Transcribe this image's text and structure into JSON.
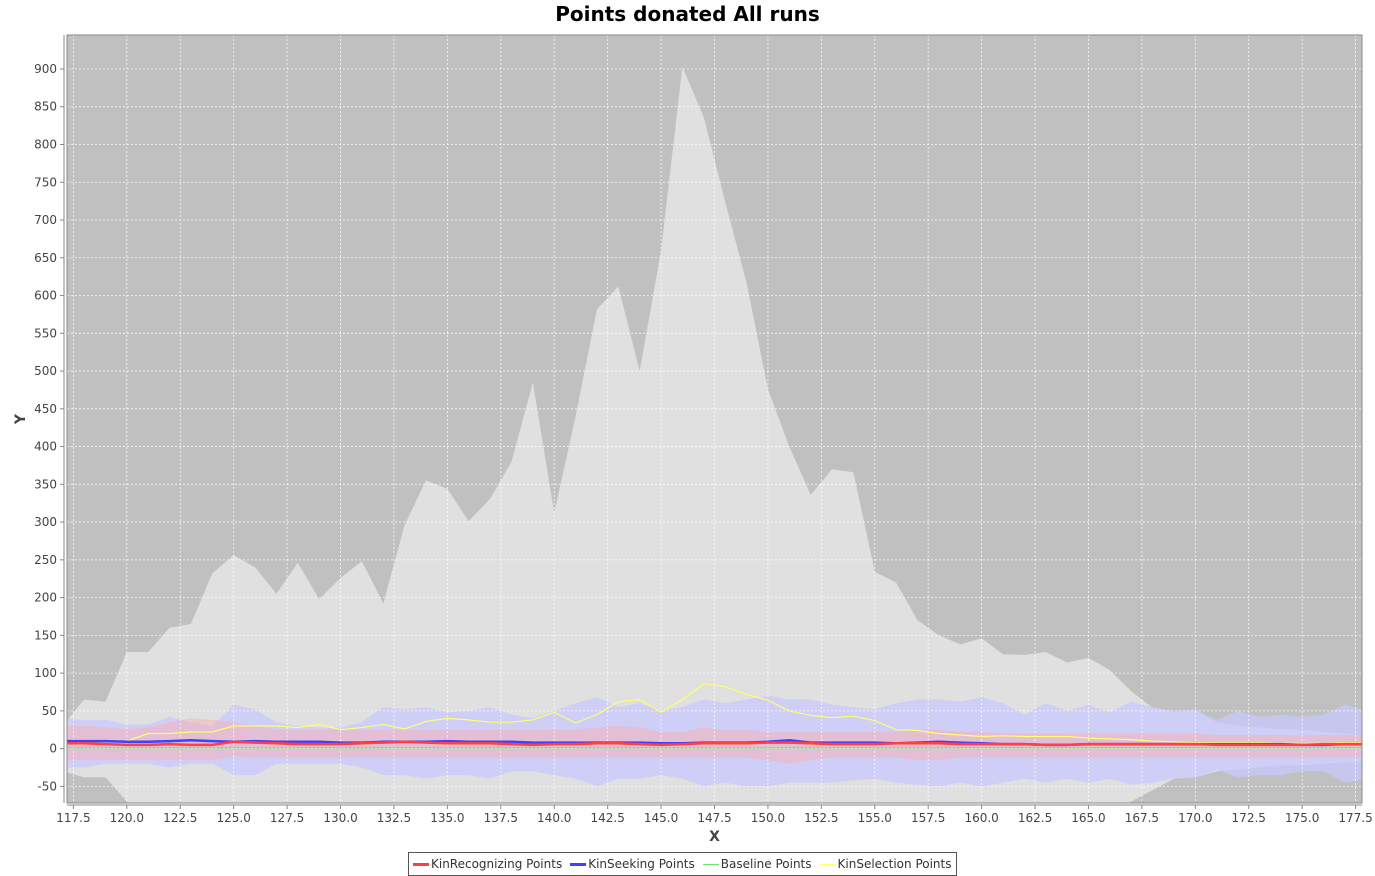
{
  "chart_data": {
    "type": "area",
    "title": "Points donated All runs",
    "xlabel": "X",
    "ylabel": "Y",
    "xlim": [
      117.2,
      177.8
    ],
    "ylim": [
      -72,
      945
    ],
    "grid": true,
    "legend_position": "bottom",
    "x_ticks": [
      "117.5",
      "120.0",
      "122.5",
      "125.0",
      "127.5",
      "130.0",
      "132.5",
      "135.0",
      "137.5",
      "140.0",
      "142.5",
      "145.0",
      "147.5",
      "150.0",
      "152.5",
      "155.0",
      "157.5",
      "160.0",
      "162.5",
      "165.0",
      "167.5",
      "170.0",
      "172.5",
      "175.0",
      "177.5"
    ],
    "y_ticks": [
      "-50",
      "0",
      "50",
      "100",
      "150",
      "200",
      "250",
      "300",
      "350",
      "400",
      "450",
      "500",
      "550",
      "600",
      "650",
      "700",
      "750",
      "800",
      "850",
      "900"
    ],
    "x": [
      117,
      118,
      119,
      120,
      121,
      122,
      123,
      124,
      125,
      126,
      127,
      128,
      129,
      130,
      131,
      132,
      133,
      134,
      135,
      136,
      137,
      138,
      139,
      140,
      141,
      142,
      143,
      144,
      145,
      146,
      147,
      148,
      149,
      150,
      151,
      152,
      153,
      154,
      155,
      156,
      157,
      158,
      159,
      160,
      161,
      162,
      163,
      164,
      165,
      166,
      167,
      168,
      169,
      170,
      171,
      172,
      173,
      174,
      175,
      176,
      177,
      178
    ],
    "series": [
      {
        "name": "KinRecognizing Points",
        "color": "#ff4040",
        "values": [
          7,
          7,
          6,
          5,
          5,
          6,
          5,
          5,
          9,
          8,
          7,
          6,
          6,
          6,
          7,
          8,
          9,
          8,
          7,
          7,
          7,
          6,
          5,
          6,
          6,
          7,
          7,
          6,
          5,
          6,
          7,
          7,
          7,
          8,
          8,
          7,
          6,
          6,
          6,
          7,
          7,
          7,
          6,
          6,
          6,
          6,
          5,
          5,
          6,
          6,
          6,
          6,
          6,
          6,
          5,
          5,
          5,
          5,
          5,
          6,
          6,
          6
        ],
        "band_upper": [
          30,
          30,
          28,
          26,
          28,
          35,
          40,
          38,
          35,
          30,
          25,
          25,
          25,
          25,
          25,
          25,
          25,
          25,
          25,
          25,
          25,
          25,
          25,
          25,
          25,
          28,
          30,
          28,
          22,
          22,
          28,
          25,
          25,
          22,
          22,
          22,
          22,
          22,
          22,
          22,
          25,
          25,
          22,
          22,
          20,
          20,
          20,
          20,
          20,
          20,
          20,
          20,
          20,
          20,
          18,
          18,
          18,
          18,
          18,
          18,
          18,
          18
        ],
        "band_lower": [
          -15,
          -15,
          -15,
          -15,
          -15,
          -15,
          -15,
          -15,
          -10,
          -12,
          -12,
          -12,
          -12,
          -12,
          -12,
          -12,
          -12,
          -12,
          -12,
          -12,
          -12,
          -12,
          -12,
          -12,
          -12,
          -12,
          -12,
          -12,
          -12,
          -12,
          -12,
          -12,
          -12,
          -15,
          -20,
          -15,
          -12,
          -12,
          -12,
          -12,
          -15,
          -15,
          -12,
          -12,
          -12,
          -12,
          -12,
          -12,
          -12,
          -12,
          -12,
          -12,
          -12,
          -12,
          -12,
          -12,
          -12,
          -12,
          -12,
          -12,
          -12,
          -12
        ]
      },
      {
        "name": "KinSeeking Points",
        "color": "#4040ff",
        "values": [
          10,
          10,
          10,
          9,
          9,
          10,
          11,
          10,
          9,
          10,
          9,
          9,
          9,
          8,
          8,
          9,
          9,
          9,
          10,
          9,
          9,
          9,
          8,
          8,
          8,
          8,
          8,
          8,
          7,
          7,
          8,
          8,
          8,
          9,
          11,
          8,
          8,
          8,
          8,
          7,
          8,
          9,
          8,
          7,
          6,
          6,
          5,
          5,
          6,
          6,
          6,
          6,
          6,
          6,
          6,
          6,
          6,
          6,
          5,
          5,
          6,
          6
        ],
        "band_upper": [
          40,
          38,
          38,
          32,
          32,
          42,
          35,
          30,
          58,
          52,
          35,
          30,
          28,
          28,
          35,
          55,
          52,
          55,
          48,
          50,
          55,
          45,
          40,
          50,
          60,
          68,
          55,
          60,
          50,
          55,
          65,
          60,
          65,
          70,
          65,
          65,
          58,
          55,
          52,
          60,
          65,
          65,
          62,
          68,
          60,
          45,
          60,
          50,
          58,
          48,
          62,
          55,
          50,
          52,
          38,
          50,
          42,
          45,
          42,
          45,
          58,
          50
        ],
        "band_lower": [
          -25,
          -25,
          -20,
          -20,
          -20,
          -25,
          -20,
          -20,
          -35,
          -35,
          -20,
          -20,
          -20,
          -20,
          -25,
          -35,
          -35,
          -40,
          -35,
          -35,
          -40,
          -30,
          -30,
          -35,
          -40,
          -50,
          -40,
          -40,
          -35,
          -40,
          -50,
          -45,
          -50,
          -50,
          -45,
          -45,
          -45,
          -42,
          -40,
          -45,
          -48,
          -50,
          -45,
          -50,
          -45,
          -40,
          -45,
          -40,
          -45,
          -40,
          -48,
          -45,
          -40,
          -38,
          -28,
          -38,
          -35,
          -35,
          -30,
          -30,
          -45,
          -40
        ]
      },
      {
        "name": "Baseline Points",
        "color": "#70e070",
        "values": [
          1,
          1,
          1,
          1,
          1,
          1,
          1,
          1,
          1,
          1,
          1,
          1,
          1,
          1,
          1,
          1,
          1,
          1,
          1,
          1,
          1,
          1,
          1,
          1,
          1,
          1,
          1,
          1,
          1,
          1,
          1,
          1,
          1,
          1,
          1,
          1,
          1,
          1,
          1,
          1,
          1,
          1,
          1,
          1,
          1,
          1,
          1,
          1,
          1,
          1,
          1,
          1,
          1,
          1,
          1,
          1,
          1,
          1,
          1,
          1,
          1,
          1
        ]
      },
      {
        "name": "KinSelection Points",
        "color": "#ffff70",
        "values": [
          8,
          8,
          9,
          10,
          20,
          20,
          22,
          22,
          30,
          30,
          30,
          28,
          32,
          25,
          28,
          32,
          26,
          36,
          40,
          38,
          35,
          35,
          38,
          48,
          34,
          45,
          62,
          65,
          48,
          65,
          86,
          82,
          72,
          64,
          50,
          44,
          41,
          43,
          37,
          25,
          24,
          20,
          18,
          16,
          17,
          16,
          16,
          16,
          14,
          13,
          12,
          10,
          9,
          8,
          8,
          8,
          8,
          7,
          7,
          7,
          8,
          8
        ],
        "band_upper": [
          30,
          65,
          62,
          128,
          128,
          160,
          165,
          232,
          256,
          240,
          205,
          246,
          198,
          226,
          248,
          192,
          296,
          355,
          344,
          301,
          331,
          380,
          485,
          312,
          440,
          582,
          612,
          500,
          660,
          903,
          836,
          724,
          617,
          476,
          400,
          336,
          370,
          366,
          234,
          220,
          170,
          150,
          138,
          146,
          125,
          124,
          128,
          114,
          120,
          104,
          76,
          54,
          48,
          50,
          35,
          30,
          28,
          26,
          25,
          22,
          20,
          18
        ],
        "band_lower": [
          -30,
          -38,
          -38,
          -70,
          -100,
          -100,
          -100,
          -100,
          -100,
          -100,
          -100,
          -100,
          -100,
          -100,
          -100,
          -100,
          -100,
          -100,
          -100,
          -100,
          -100,
          -100,
          -100,
          -100,
          -100,
          -100,
          -100,
          -100,
          -100,
          -100,
          -100,
          -100,
          -100,
          -100,
          -100,
          -100,
          -100,
          -100,
          -100,
          -100,
          -100,
          -100,
          -100,
          -100,
          -100,
          -100,
          -100,
          -100,
          -100,
          -100,
          -70,
          -55,
          -40,
          -38,
          -30,
          -28,
          -25,
          -22,
          -22,
          -20,
          -18,
          -18
        ]
      }
    ]
  }
}
